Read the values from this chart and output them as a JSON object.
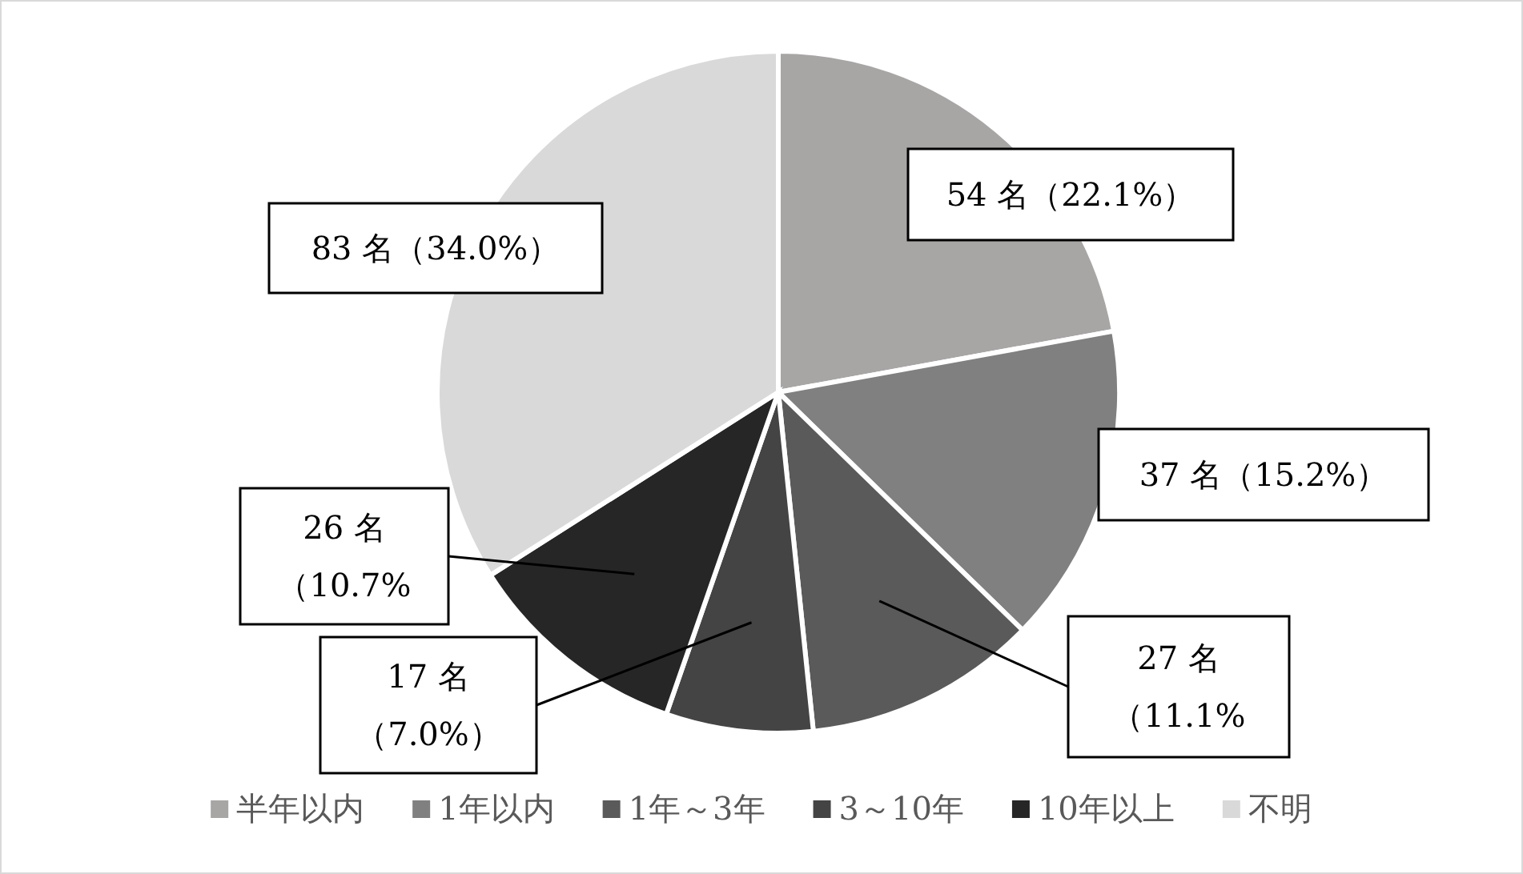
{
  "chart_data": {
    "type": "pie",
    "categories": [
      "半年以内",
      "1年以内",
      "1年～3年",
      "3～10年",
      "10年以上",
      "不明"
    ],
    "values": [
      54,
      37,
      27,
      17,
      26,
      83
    ],
    "colors": [
      "#a8a5a5",
      "#808080",
      "#5a5a5a",
      "#444444",
      "#262626",
      "#d9d9d9"
    ],
    "value_labels": [
      "54 名（22.1%）",
      "37 名（15.2%）",
      "27 名（11.1%",
      "17 名（7.0%）",
      "26 名（10.7%",
      "83 名（34.0%）"
    ],
    "legend": "bottom"
  }
}
